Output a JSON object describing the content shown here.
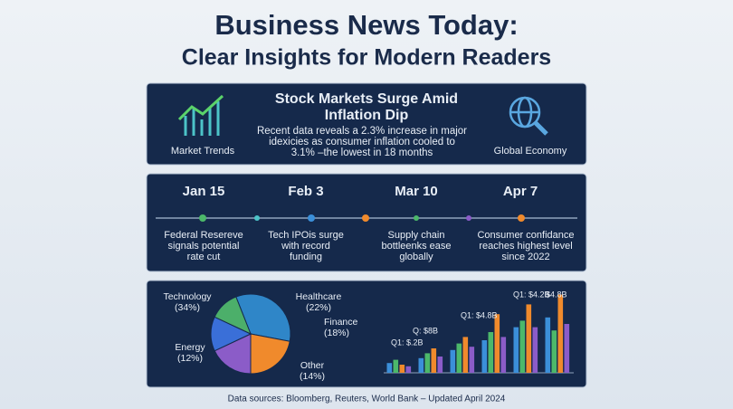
{
  "header": {
    "title_lines": [
      "Business News Today:",
      "Clear Insights for Modern Readers"
    ]
  },
  "top_card": {
    "left_label": "Market Trends",
    "right_label": "Global Economy",
    "headline_lines": [
      "Stock Markets Surge Amid",
      "Inflation Dip"
    ],
    "body_lines": [
      "Recent data reveals a 2.3% increase in major",
      "idexicies as consumer inflation cooled to",
      "3.1% –the lowest in 18 months"
    ]
  },
  "timeline": {
    "events": [
      {
        "date": "Jan 15",
        "lines": [
          "Federal Resereve",
          "signals potential",
          "rate cut"
        ]
      },
      {
        "date": "Feb 3",
        "lines": [
          "Tech IPOis surge",
          "with record",
          "funding"
        ]
      },
      {
        "date": "Mar 10",
        "lines": [
          "Supply chain",
          "bottleenks ease",
          "globally"
        ]
      },
      {
        "date": "Apr 7",
        "lines": [
          "Consumer confidance",
          "reaches highest level",
          "since 2022"
        ]
      }
    ]
  },
  "chart_data": [
    {
      "type": "pie",
      "categories": [
        "Technology",
        "Healthcare",
        "Finance",
        "Other",
        "Energy"
      ],
      "values": [
        34,
        22,
        18,
        14,
        12
      ],
      "value_labels": [
        "(34%)",
        "(22%)",
        "(18%)",
        "(14%)",
        "(12%)"
      ],
      "colors": [
        "#2f86c8",
        "#f08a2c",
        "#8b5cc8",
        "#3a6fd8",
        "#4caf6a"
      ]
    },
    {
      "type": "bar",
      "categories": [
        null,
        null,
        null,
        null,
        null,
        null
      ],
      "ylim": [
        0,
        5
      ],
      "series": [
        {
          "color": "#3b8fd9",
          "values": [
            0.6,
            0.9,
            1.4,
            2.0,
            2.8,
            3.4
          ]
        },
        {
          "color": "#4cb86a",
          "values": [
            0.8,
            1.2,
            1.8,
            2.5,
            3.2,
            2.6
          ]
        },
        {
          "color": "#f08a2c",
          "values": [
            0.5,
            1.5,
            2.2,
            3.6,
            4.2,
            4.8
          ]
        },
        {
          "color": "#8b5cc8",
          "values": [
            0.4,
            1.0,
            1.6,
            2.2,
            2.8,
            3.0
          ]
        }
      ],
      "annotations": [
        "Q1: $.2B",
        "Q: $8B",
        "Q1: $4.8B",
        "Q1: $4.2B",
        "$4.8B"
      ]
    }
  ],
  "footer": "Data sources: Bloomberg, Reuters, World Bank – Updated April 2024"
}
